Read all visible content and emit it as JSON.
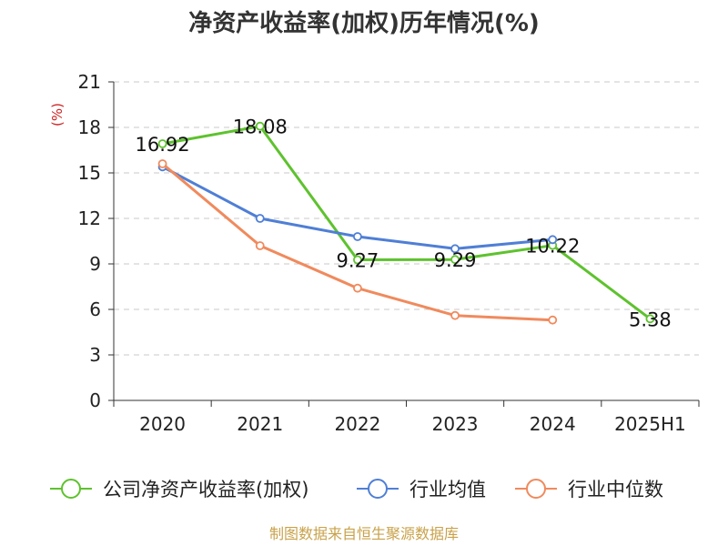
{
  "chart_data": {
    "type": "line",
    "title": "净资产收益率(加权)历年情况(%)",
    "ylabel": "(%)",
    "categories": [
      "2020",
      "2021",
      "2022",
      "2023",
      "2024",
      "2025H1"
    ],
    "ylim": [
      0,
      21
    ],
    "yticks": [
      0,
      3,
      6,
      9,
      12,
      15,
      18,
      21
    ],
    "grid": true,
    "legend_position": "bottom",
    "series": [
      {
        "name": "公司净资产收益率(加权)",
        "color": "#5ec22e",
        "values": [
          16.92,
          18.08,
          9.27,
          9.29,
          10.22,
          5.38
        ],
        "labels": [
          "16.92",
          "18.08",
          "9.27",
          "9.29",
          "10.22",
          "5.38"
        ]
      },
      {
        "name": "行业均值",
        "color": "#4f7fd6",
        "values": [
          15.4,
          12.0,
          10.8,
          10.0,
          10.6,
          null
        ]
      },
      {
        "name": "行业中位数",
        "color": "#f08a5d",
        "values": [
          15.6,
          10.2,
          7.4,
          5.6,
          5.3,
          null
        ]
      }
    ]
  },
  "footer": {
    "source": "制图数据来自恒生聚源数据库"
  }
}
